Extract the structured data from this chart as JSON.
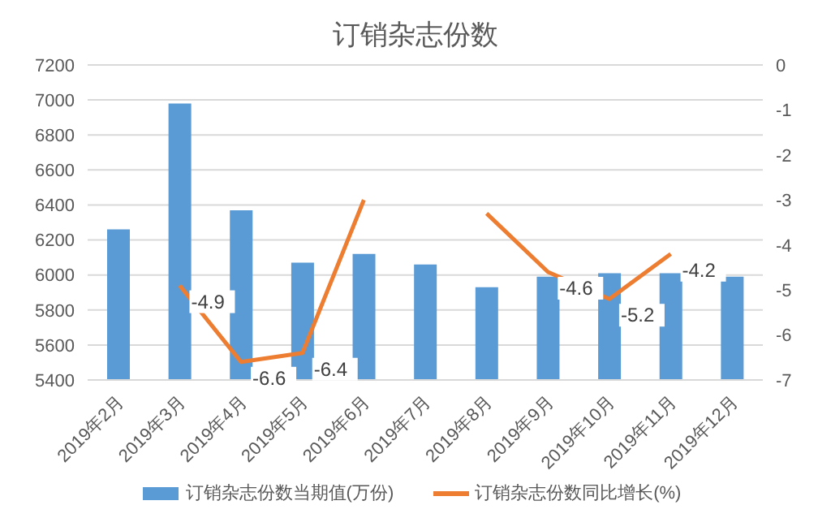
{
  "chart_data": {
    "type": "bar",
    "title": "订销杂志份数",
    "categories": [
      "2019年2月",
      "2019年3月",
      "2019年4月",
      "2019年5月",
      "2019年6月",
      "2019年7月",
      "2019年8月",
      "2019年9月",
      "2019年10月",
      "2019年11月",
      "2019年12月"
    ],
    "series": [
      {
        "name": "订销杂志份数当期值(万份)",
        "color": "#5b9bd5",
        "values": [
          6260,
          6980,
          6370,
          6070,
          6120,
          6060,
          5930,
          5990,
          6010,
          6010,
          5990
        ]
      },
      {
        "name": "订销杂志份数同比增长(%)",
        "type": "line",
        "axis": "y2",
        "color": "#ed7d31",
        "values": [
          null,
          -4.9,
          -6.6,
          -6.4,
          -3.0,
          null,
          -3.3,
          -4.6,
          -5.2,
          -4.2,
          null
        ],
        "value_labels": [
          null,
          "-4.9",
          "-6.6",
          "-6.4",
          null,
          null,
          null,
          "-4.6",
          "-5.2",
          "-4.2",
          null
        ]
      }
    ],
    "ylim": [
      5400,
      7200
    ],
    "yticks": [
      5400,
      5600,
      5800,
      6000,
      6200,
      6400,
      6600,
      6800,
      7000,
      7200
    ],
    "y2lim": [
      -7,
      0
    ],
    "y2ticks": [
      -7,
      -6,
      -5,
      -4,
      -3,
      -2,
      -1,
      0
    ],
    "grid": "y",
    "legend": "bottom",
    "marker": "none"
  }
}
